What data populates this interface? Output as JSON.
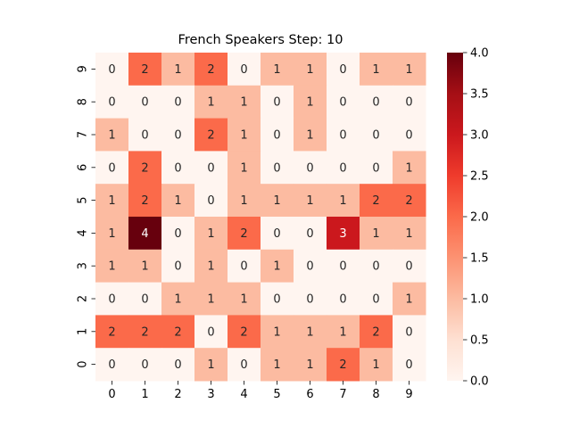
{
  "chart_data": {
    "type": "heatmap",
    "title": "French Speakers Step: 10",
    "xlabel": "",
    "ylabel": "",
    "x_categories": [
      "0",
      "1",
      "2",
      "3",
      "4",
      "5",
      "6",
      "7",
      "8",
      "9"
    ],
    "y_categories": [
      "9",
      "8",
      "7",
      "6",
      "5",
      "4",
      "3",
      "2",
      "1",
      "0"
    ],
    "values": [
      [
        0,
        2,
        1,
        2,
        0,
        1,
        1,
        0,
        1,
        1
      ],
      [
        0,
        0,
        0,
        1,
        1,
        0,
        1,
        0,
        0,
        0
      ],
      [
        1,
        0,
        0,
        2,
        1,
        0,
        1,
        0,
        0,
        0
      ],
      [
        0,
        2,
        0,
        0,
        1,
        0,
        0,
        0,
        0,
        1
      ],
      [
        1,
        2,
        1,
        0,
        1,
        1,
        1,
        1,
        2,
        2
      ],
      [
        1,
        4,
        0,
        1,
        2,
        0,
        0,
        3,
        1,
        1
      ],
      [
        1,
        1,
        0,
        1,
        0,
        1,
        0,
        0,
        0,
        0
      ],
      [
        0,
        0,
        1,
        1,
        1,
        0,
        0,
        0,
        0,
        1
      ],
      [
        2,
        2,
        2,
        0,
        2,
        1,
        1,
        1,
        2,
        0
      ],
      [
        0,
        0,
        0,
        1,
        0,
        1,
        1,
        2,
        1,
        0
      ]
    ],
    "colormap": "Reds",
    "colormap_stops": [
      "#fff5f0",
      "#fee0d2",
      "#fcbba1",
      "#fc9272",
      "#fb6a4a",
      "#ef3b2c",
      "#cb181d",
      "#a50f15",
      "#67000d"
    ],
    "vmin": 0,
    "vmax": 4,
    "colorbar_ticks": [
      "0.0",
      "0.5",
      "1.0",
      "1.5",
      "2.0",
      "2.5",
      "3.0",
      "3.5",
      "4.0"
    ],
    "annotations": true,
    "grid": false
  }
}
